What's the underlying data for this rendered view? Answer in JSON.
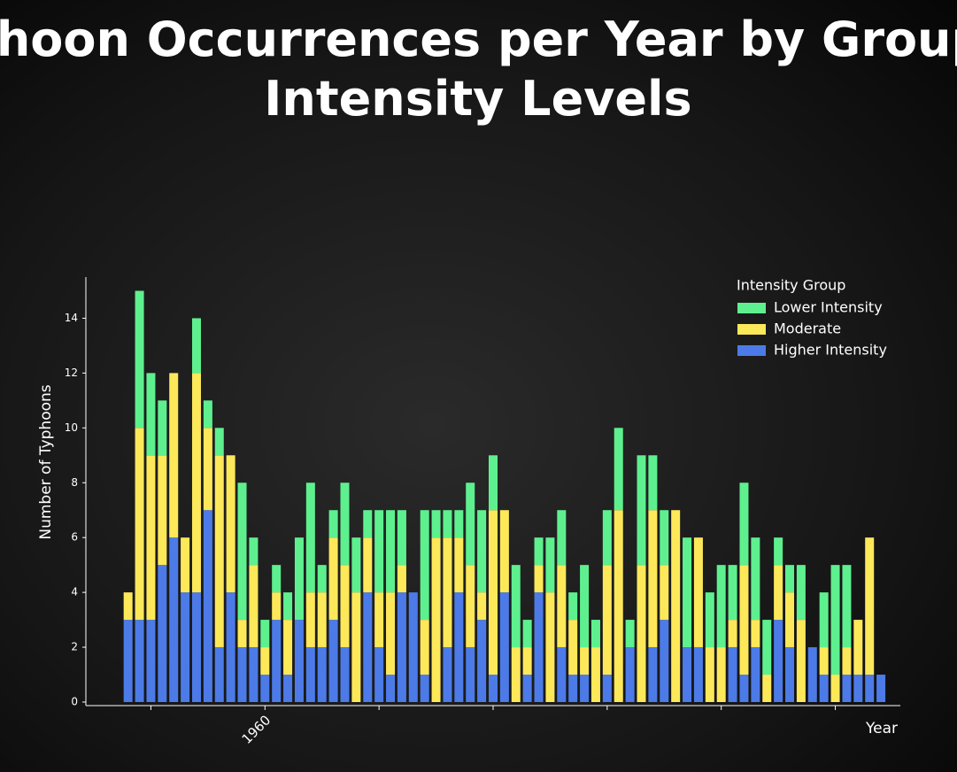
{
  "chart_data": {
    "type": "stacked_bar",
    "title": "Typhoon Occurrences per Year by Grouped Intensity Levels",
    "x_label": "Year",
    "y_label": "Number of Typhoons",
    "legend_title": "Intensity Group",
    "legend_position": "upper right",
    "x": [
      1948,
      1949,
      1950,
      1951,
      1952,
      1953,
      1954,
      1955,
      1956,
      1957,
      1958,
      1959,
      1960,
      1961,
      1962,
      1963,
      1964,
      1965,
      1966,
      1967,
      1968,
      1969,
      1970,
      1971,
      1972,
      1973,
      1974,
      1975,
      1976,
      1977,
      1978,
      1979,
      1980,
      1981,
      1982,
      1983,
      1984,
      1985,
      1986,
      1987,
      1988,
      1989,
      1990,
      1991,
      1992,
      1993,
      1994,
      1995,
      1996,
      1997,
      1998,
      1999,
      2000,
      2001,
      2002,
      2003,
      2004,
      2005,
      2006,
      2007,
      2008,
      2009,
      2010,
      2011,
      2012,
      2013,
      2014
    ],
    "series": [
      {
        "name": "Lower Intensity",
        "color": "#5ef08f",
        "values": [
          0,
          5,
          3,
          2,
          0,
          0,
          2,
          1,
          1,
          0,
          5,
          1,
          1,
          1,
          1,
          3,
          4,
          1,
          1,
          3,
          2,
          1,
          3,
          3,
          2,
          0,
          4,
          1,
          1,
          1,
          3,
          3,
          2,
          0,
          3,
          1,
          1,
          2,
          2,
          1,
          3,
          1,
          2,
          3,
          1,
          4,
          2,
          2,
          0,
          4,
          0,
          2,
          3,
          2,
          3,
          3,
          2,
          1,
          1,
          2,
          0,
          2,
          4,
          3,
          0,
          0,
          0
        ]
      },
      {
        "name": "Moderate",
        "color": "#fde85a",
        "values": [
          1,
          7,
          6,
          4,
          6,
          2,
          8,
          3,
          7,
          5,
          1,
          3,
          1,
          1,
          2,
          0,
          2,
          2,
          3,
          3,
          4,
          2,
          2,
          3,
          1,
          0,
          2,
          6,
          4,
          2,
          3,
          1,
          6,
          3,
          2,
          1,
          1,
          4,
          3,
          2,
          1,
          2,
          4,
          7,
          0,
          5,
          5,
          2,
          7,
          0,
          4,
          2,
          2,
          1,
          4,
          1,
          1,
          2,
          2,
          3,
          0,
          1,
          1,
          1,
          2,
          5,
          0
        ]
      },
      {
        "name": "Higher Intensity",
        "color": "#4c7be8",
        "values": [
          3,
          3,
          3,
          5,
          6,
          4,
          4,
          7,
          2,
          4,
          2,
          2,
          1,
          3,
          1,
          3,
          2,
          2,
          3,
          2,
          0,
          4,
          2,
          1,
          4,
          4,
          1,
          0,
          2,
          4,
          2,
          3,
          1,
          4,
          0,
          1,
          4,
          0,
          2,
          1,
          1,
          0,
          1,
          0,
          2,
          0,
          2,
          3,
          0,
          2,
          2,
          0,
          0,
          2,
          1,
          2,
          0,
          3,
          2,
          0,
          2,
          1,
          0,
          1,
          1,
          1,
          1
        ]
      }
    ],
    "xlim": [
      1944.3,
      2015.7
    ],
    "xticks": [
      1960
    ],
    "xticks_minor": [
      1950,
      1970,
      1980,
      1990,
      2000,
      2010
    ],
    "ylim": [
      0,
      15.5
    ],
    "yticks": [
      0,
      2,
      4,
      6,
      8,
      10,
      12,
      14
    ],
    "grid": false
  }
}
